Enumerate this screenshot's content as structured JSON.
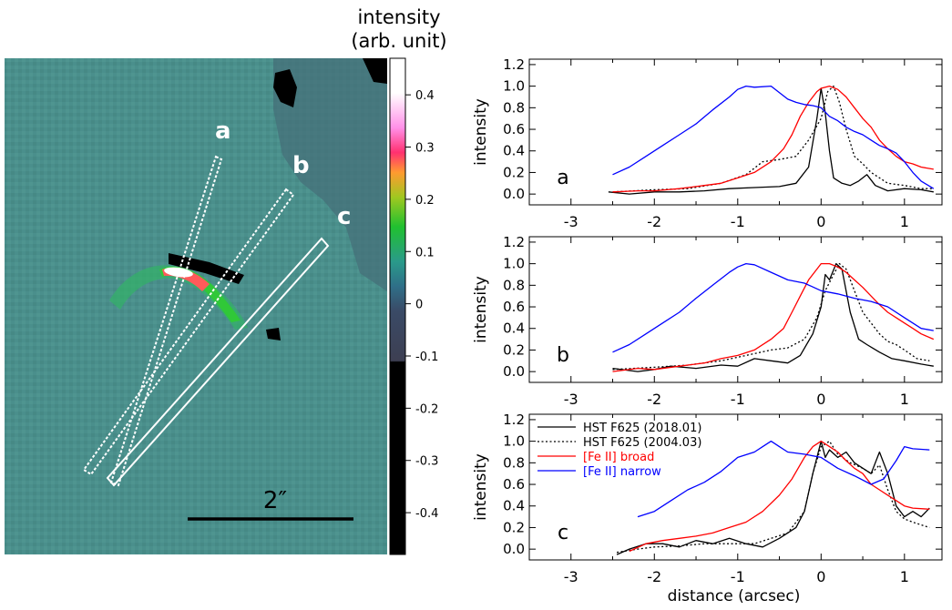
{
  "image_panel": {
    "colorbar_title_line1": "intensity",
    "colorbar_title_line2": "(arb. unit)",
    "colorbar_ticks": [
      "0.4",
      "0.3",
      "0.2",
      "0.1",
      "0",
      "-0.1",
      "-0.2",
      "-0.3",
      "-0.4"
    ],
    "colorbar_tick_values": [
      0.4,
      0.3,
      0.2,
      0.1,
      0,
      -0.1,
      -0.2,
      -0.3,
      -0.4
    ],
    "colorbar_range": [
      -0.48,
      0.47
    ],
    "slit_labels": [
      "a",
      "b",
      "c"
    ],
    "scale_bar_label": "2″",
    "colors": {
      "background": "#4a8f8c",
      "slit": "#ffffff"
    }
  },
  "chart_data": [
    {
      "type": "line",
      "panel": "a",
      "xlabel": "",
      "ylabel": "intensity",
      "xlim": [
        -3.5,
        1.45
      ],
      "ylim": [
        -0.1,
        1.25
      ],
      "xticks": [
        -3,
        -2,
        -1,
        0,
        1
      ],
      "xticklabels": [
        "-3",
        "-2",
        "-1",
        "0",
        "1"
      ],
      "yticks": [
        0.0,
        0.2,
        0.4,
        0.6,
        0.8,
        1.0,
        1.2
      ],
      "yticklabels": [
        "0.0",
        "0.2",
        "0.4",
        "0.6",
        "0.8",
        "1.0",
        "1.2"
      ],
      "series": [
        {
          "name": "HST F625 (2018.01)",
          "color": "#000000",
          "dash": "solid",
          "x": [
            -2.55,
            -2.3,
            -2.0,
            -1.7,
            -1.4,
            -1.1,
            -0.8,
            -0.5,
            -0.3,
            -0.15,
            -0.05,
            0.0,
            0.05,
            0.1,
            0.15,
            0.25,
            0.35,
            0.45,
            0.55,
            0.65,
            0.8,
            1.0,
            1.2,
            1.35
          ],
          "y": [
            0.02,
            0.0,
            0.02,
            0.02,
            0.03,
            0.05,
            0.06,
            0.07,
            0.1,
            0.25,
            0.7,
            0.98,
            0.75,
            0.4,
            0.15,
            0.1,
            0.08,
            0.12,
            0.18,
            0.08,
            0.03,
            0.05,
            0.04,
            0.02
          ]
        },
        {
          "name": "HST F625 (2004.03)",
          "color": "#000000",
          "dash": "dotted",
          "x": [
            -2.5,
            -2.0,
            -1.6,
            -1.2,
            -0.9,
            -0.7,
            -0.5,
            -0.3,
            -0.15,
            0.0,
            0.08,
            0.15,
            0.22,
            0.3,
            0.4,
            0.5,
            0.6,
            0.8,
            1.0,
            1.2,
            1.35
          ],
          "y": [
            0.02,
            0.04,
            0.05,
            0.1,
            0.18,
            0.3,
            0.32,
            0.35,
            0.5,
            0.7,
            0.95,
            1.0,
            0.85,
            0.6,
            0.35,
            0.28,
            0.2,
            0.1,
            0.08,
            0.05,
            0.05
          ]
        },
        {
          "name": "[Fe II] broad",
          "color": "#ff0000",
          "dash": "solid",
          "x": [
            -2.5,
            -2.2,
            -2.0,
            -1.7,
            -1.4,
            -1.2,
            -1.0,
            -0.8,
            -0.6,
            -0.45,
            -0.35,
            -0.25,
            -0.15,
            -0.05,
            0.0,
            0.1,
            0.2,
            0.3,
            0.4,
            0.5,
            0.6,
            0.7,
            0.8,
            0.9,
            1.0,
            1.1,
            1.2,
            1.35
          ],
          "y": [
            0.02,
            0.03,
            0.03,
            0.05,
            0.08,
            0.1,
            0.15,
            0.2,
            0.3,
            0.42,
            0.55,
            0.72,
            0.85,
            0.95,
            0.98,
            1.0,
            0.97,
            0.9,
            0.8,
            0.7,
            0.62,
            0.5,
            0.42,
            0.35,
            0.3,
            0.28,
            0.25,
            0.23
          ]
        },
        {
          "name": "[Fe II] narrow",
          "color": "#0000ff",
          "dash": "solid",
          "x": [
            -2.5,
            -2.3,
            -2.1,
            -1.9,
            -1.7,
            -1.5,
            -1.3,
            -1.1,
            -1.0,
            -0.9,
            -0.8,
            -0.6,
            -0.4,
            -0.3,
            -0.2,
            -0.1,
            0.0,
            0.1,
            0.2,
            0.3,
            0.4,
            0.5,
            0.6,
            0.7,
            0.8,
            0.9,
            1.0,
            1.1,
            1.2,
            1.35
          ],
          "y": [
            0.18,
            0.25,
            0.35,
            0.45,
            0.55,
            0.65,
            0.78,
            0.9,
            0.97,
            1.0,
            0.99,
            1.0,
            0.88,
            0.85,
            0.83,
            0.82,
            0.8,
            0.72,
            0.68,
            0.62,
            0.58,
            0.55,
            0.5,
            0.45,
            0.42,
            0.38,
            0.3,
            0.2,
            0.12,
            0.05
          ]
        }
      ]
    },
    {
      "type": "line",
      "panel": "b",
      "xlabel": "",
      "ylabel": "intensity",
      "xlim": [
        -3.5,
        1.45
      ],
      "ylim": [
        -0.1,
        1.25
      ],
      "xticks": [
        -3,
        -2,
        -1,
        0,
        1
      ],
      "xticklabels": [
        "-3",
        "-2",
        "-1",
        "0",
        "1"
      ],
      "yticks": [
        0.0,
        0.2,
        0.4,
        0.6,
        0.8,
        1.0,
        1.2
      ],
      "yticklabels": [
        "0.0",
        "0.2",
        "0.4",
        "0.6",
        "0.8",
        "1.0",
        "1.2"
      ],
      "series": [
        {
          "name": "HST F625 (2018.01)",
          "color": "#000000",
          "dash": "solid",
          "x": [
            -2.5,
            -2.2,
            -2.0,
            -1.8,
            -1.5,
            -1.2,
            -1.0,
            -0.8,
            -0.6,
            -0.4,
            -0.25,
            -0.1,
            0.0,
            0.05,
            0.1,
            0.18,
            0.25,
            0.35,
            0.45,
            0.55,
            0.7,
            0.85,
            1.0,
            1.2,
            1.35
          ],
          "y": [
            0.03,
            0.0,
            0.02,
            0.05,
            0.03,
            0.06,
            0.05,
            0.12,
            0.1,
            0.08,
            0.15,
            0.35,
            0.6,
            0.9,
            0.85,
            1.0,
            0.95,
            0.55,
            0.3,
            0.25,
            0.18,
            0.12,
            0.1,
            0.07,
            0.05
          ]
        },
        {
          "name": "HST F625 (2004.03)",
          "color": "#000000",
          "dash": "dotted",
          "x": [
            -2.5,
            -2.0,
            -1.6,
            -1.2,
            -0.9,
            -0.6,
            -0.4,
            -0.2,
            -0.05,
            0.05,
            0.15,
            0.22,
            0.3,
            0.4,
            0.5,
            0.6,
            0.7,
            0.8,
            0.9,
            1.0,
            1.15,
            1.3
          ],
          "y": [
            0.02,
            0.04,
            0.06,
            0.1,
            0.15,
            0.2,
            0.22,
            0.3,
            0.5,
            0.75,
            0.9,
            1.0,
            0.95,
            0.75,
            0.55,
            0.45,
            0.35,
            0.28,
            0.25,
            0.2,
            0.12,
            0.1
          ]
        },
        {
          "name": "[Fe II] broad",
          "color": "#ff0000",
          "dash": "solid",
          "x": [
            -2.5,
            -2.2,
            -2.0,
            -1.7,
            -1.4,
            -1.2,
            -1.0,
            -0.8,
            -0.6,
            -0.45,
            -0.35,
            -0.25,
            -0.15,
            -0.05,
            0.0,
            0.1,
            0.2,
            0.3,
            0.4,
            0.5,
            0.6,
            0.7,
            0.8,
            0.9,
            1.0,
            1.1,
            1.2,
            1.35
          ],
          "y": [
            0.0,
            0.03,
            0.02,
            0.05,
            0.08,
            0.12,
            0.15,
            0.2,
            0.3,
            0.4,
            0.55,
            0.7,
            0.85,
            0.95,
            1.0,
            1.0,
            0.97,
            0.92,
            0.85,
            0.78,
            0.7,
            0.62,
            0.55,
            0.5,
            0.45,
            0.4,
            0.35,
            0.3
          ]
        },
        {
          "name": "[Fe II] narrow",
          "color": "#0000ff",
          "dash": "solid",
          "x": [
            -2.5,
            -2.3,
            -2.1,
            -1.9,
            -1.7,
            -1.5,
            -1.3,
            -1.1,
            -1.0,
            -0.9,
            -0.8,
            -0.6,
            -0.4,
            -0.2,
            0.0,
            0.2,
            0.4,
            0.6,
            0.8,
            1.0,
            1.2,
            1.35
          ],
          "y": [
            0.18,
            0.25,
            0.35,
            0.45,
            0.55,
            0.68,
            0.8,
            0.92,
            0.97,
            1.0,
            0.99,
            0.92,
            0.85,
            0.82,
            0.75,
            0.72,
            0.68,
            0.65,
            0.6,
            0.5,
            0.4,
            0.38
          ]
        }
      ]
    },
    {
      "type": "line",
      "panel": "c",
      "xlabel": "distance (arcsec)",
      "ylabel": "intensity",
      "xlim": [
        -3.5,
        1.45
      ],
      "ylim": [
        -0.1,
        1.25
      ],
      "xticks": [
        -3,
        -2,
        -1,
        0,
        1
      ],
      "xticklabels": [
        "-3",
        "-2",
        "-1",
        "0",
        "1"
      ],
      "yticks": [
        0.0,
        0.2,
        0.4,
        0.6,
        0.8,
        1.0,
        1.2
      ],
      "yticklabels": [
        "0.0",
        "0.2",
        "0.4",
        "0.6",
        "0.8",
        "1.0",
        "1.2"
      ],
      "legend": [
        "HST F625 (2018.01)",
        "HST F625 (2004.03)",
        "[Fe II] broad",
        "[Fe II] narrow"
      ],
      "series": [
        {
          "name": "HST F625 (2018.01)",
          "color": "#000000",
          "dash": "solid",
          "x": [
            -2.45,
            -2.3,
            -2.1,
            -1.9,
            -1.7,
            -1.5,
            -1.3,
            -1.1,
            -0.9,
            -0.7,
            -0.5,
            -0.3,
            -0.2,
            -0.1,
            0.0,
            0.05,
            0.1,
            0.2,
            0.3,
            0.4,
            0.5,
            0.6,
            0.7,
            0.8,
            0.9,
            1.0,
            1.1,
            1.2,
            1.3
          ],
          "y": [
            -0.05,
            0.0,
            0.05,
            0.05,
            0.02,
            0.08,
            0.05,
            0.1,
            0.05,
            0.02,
            0.1,
            0.2,
            0.35,
            0.7,
            1.0,
            0.85,
            0.92,
            0.85,
            0.9,
            0.8,
            0.75,
            0.7,
            0.9,
            0.7,
            0.4,
            0.3,
            0.35,
            0.3,
            0.38
          ]
        },
        {
          "name": "HST F625 (2004.03)",
          "color": "#000000",
          "dash": "dotted",
          "x": [
            -2.45,
            -2.2,
            -2.0,
            -1.7,
            -1.4,
            -1.1,
            -0.8,
            -0.6,
            -0.4,
            -0.2,
            -0.1,
            0.0,
            0.1,
            0.2,
            0.35,
            0.5,
            0.6,
            0.7,
            0.8,
            0.9,
            1.0,
            1.1,
            1.3
          ],
          "y": [
            -0.03,
            0.0,
            0.02,
            0.03,
            0.05,
            0.05,
            0.05,
            0.1,
            0.15,
            0.35,
            0.7,
            0.95,
            1.0,
            0.88,
            0.8,
            0.75,
            0.7,
            0.78,
            0.55,
            0.35,
            0.28,
            0.25,
            0.2
          ]
        },
        {
          "name": "[Fe II] broad",
          "color": "#ff0000",
          "dash": "solid",
          "x": [
            -2.3,
            -2.1,
            -1.9,
            -1.7,
            -1.5,
            -1.3,
            -1.1,
            -0.9,
            -0.7,
            -0.5,
            -0.35,
            -0.2,
            -0.1,
            0.0,
            0.1,
            0.2,
            0.3,
            0.4,
            0.5,
            0.6,
            0.7,
            0.8,
            0.9,
            1.0,
            1.1,
            1.3
          ],
          "y": [
            -0.02,
            0.05,
            0.08,
            0.1,
            0.12,
            0.15,
            0.2,
            0.25,
            0.35,
            0.5,
            0.65,
            0.85,
            0.95,
            1.0,
            0.95,
            0.9,
            0.82,
            0.75,
            0.7,
            0.6,
            0.55,
            0.5,
            0.45,
            0.4,
            0.38,
            0.37
          ]
        },
        {
          "name": "[Fe II] narrow",
          "color": "#0000ff",
          "dash": "solid",
          "x": [
            -2.2,
            -2.0,
            -1.8,
            -1.6,
            -1.4,
            -1.2,
            -1.0,
            -0.8,
            -0.7,
            -0.6,
            -0.5,
            -0.4,
            -0.2,
            0.0,
            0.2,
            0.4,
            0.6,
            0.75,
            0.9,
            1.0,
            1.1,
            1.3
          ],
          "y": [
            0.3,
            0.35,
            0.45,
            0.55,
            0.62,
            0.72,
            0.85,
            0.9,
            0.95,
            1.0,
            0.95,
            0.9,
            0.88,
            0.85,
            0.75,
            0.68,
            0.6,
            0.65,
            0.82,
            0.95,
            0.93,
            0.92
          ]
        }
      ]
    }
  ]
}
